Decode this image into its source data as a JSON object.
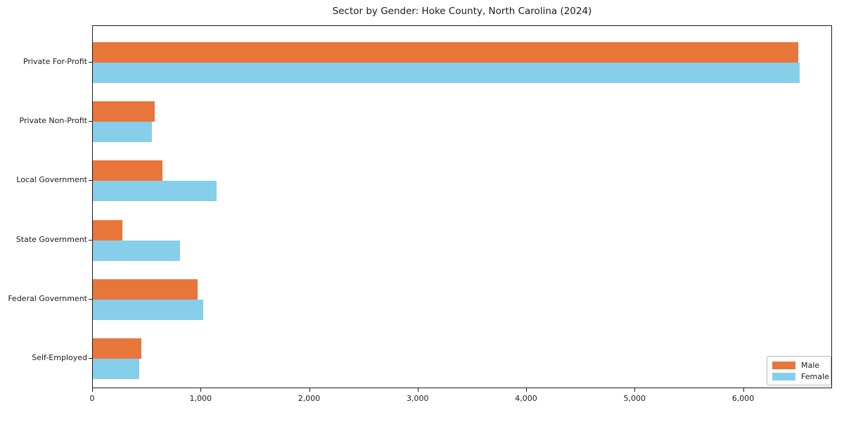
{
  "title": "Sector by Gender: Hoke County, North Carolina (2024)",
  "chart_data": {
    "type": "bar",
    "orientation": "horizontal",
    "title": "Sector by Gender: Hoke County, North Carolina (2024)",
    "xlabel": "",
    "ylabel": "",
    "categories": [
      "Private For-Profit",
      "Private Non-Profit",
      "Local Government",
      "State Government",
      "Federal Government",
      "Self-Employed"
    ],
    "series": [
      {
        "name": "Male",
        "color": "#E8763B",
        "values": [
          6505,
          570,
          640,
          275,
          965,
          445
        ]
      },
      {
        "name": "Female",
        "color": "#87CEEB",
        "values": [
          6515,
          545,
          1140,
          805,
          1020,
          430
        ]
      }
    ],
    "xlim": [
      0,
      6820
    ],
    "xticks": [
      0,
      1000,
      2000,
      3000,
      4000,
      5000,
      6000
    ],
    "xtick_labels": [
      "0",
      "1,000",
      "2,000",
      "3,000",
      "4,000",
      "5,000",
      "6,000"
    ],
    "grid": false,
    "legend_position": "lower right",
    "legend": {
      "entries": [
        "Male",
        "Female"
      ]
    }
  }
}
